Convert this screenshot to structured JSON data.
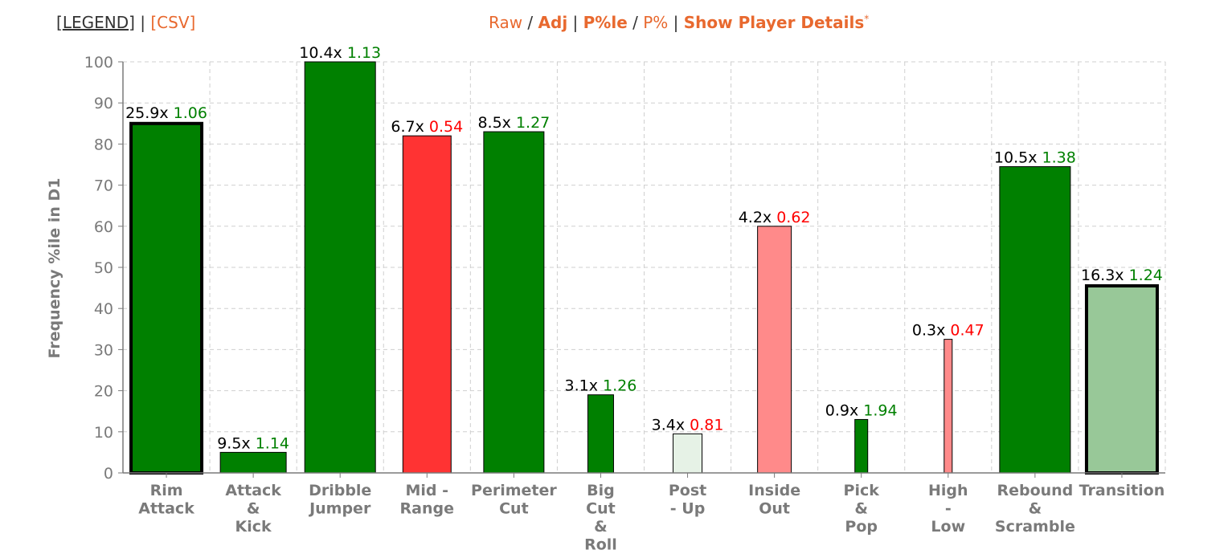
{
  "header": {
    "legend_label": "LEGEND",
    "csv_label": "[CSV]",
    "separator": " | ",
    "raw_label": "Raw",
    "adj_label": "Adj",
    "pctle_label": "P%le",
    "pct_label": "P%",
    "details_label": "Show Player Details",
    "details_mark": "*"
  },
  "colors": {
    "good_strong": "#008000",
    "good_light": "#98c898",
    "good_faint": "#e6f2e6",
    "bad_strong": "#ff3333",
    "bad_light": "#ff8a8a",
    "good_text": "#008000",
    "bad_text": "#ff0000"
  },
  "chart_data": {
    "type": "bar",
    "ylabel": "Frequency %ile in D1",
    "ylim": [
      0,
      100
    ],
    "yticks": [
      0,
      10,
      20,
      30,
      40,
      50,
      60,
      70,
      80,
      90,
      100
    ],
    "grid": true,
    "categories": [
      [
        "Rim",
        "Attack"
      ],
      [
        "Attack",
        "&",
        "Kick"
      ],
      [
        "Dribble",
        "Jumper"
      ],
      [
        "Mid -",
        "Range"
      ],
      [
        "Perimeter",
        "Cut"
      ],
      [
        "Big",
        "Cut",
        "&",
        "Roll"
      ],
      [
        "Post",
        "- Up"
      ],
      [
        "Inside",
        "Out"
      ],
      [
        "Pick",
        "&",
        "Pop"
      ],
      [
        "High",
        "-",
        "Low"
      ],
      [
        "Rebound",
        "&",
        "Scramble"
      ],
      [
        "Transition"
      ]
    ],
    "values": [
      85,
      5,
      100,
      82,
      83,
      19,
      9.5,
      60,
      13,
      32.5,
      74.5,
      45.5
    ],
    "frequency_labels": [
      "25.9x",
      "9.5x",
      "10.4x",
      "6.7x",
      "8.5x",
      "3.1x",
      "3.4x",
      "4.2x",
      "0.9x",
      "0.3x",
      "10.5x",
      "16.3x"
    ],
    "efficiency_labels": [
      "1.06",
      "1.14",
      "1.13",
      "0.54",
      "1.27",
      "1.26",
      "0.81",
      "0.62",
      "1.94",
      "0.47",
      "1.38",
      "1.24"
    ],
    "efficiency_quality": [
      "good",
      "good",
      "good",
      "bad",
      "good",
      "good",
      "bad",
      "bad",
      "good",
      "bad",
      "good",
      "good"
    ],
    "fill": [
      "good_strong",
      "good_strong",
      "good_strong",
      "bad_strong",
      "good_strong",
      "good_strong",
      "good_faint",
      "bad_light",
      "good_strong",
      "bad_light",
      "good_strong",
      "good_light"
    ],
    "emphasized": [
      true,
      false,
      false,
      false,
      false,
      false,
      false,
      false,
      false,
      false,
      false,
      true
    ]
  }
}
